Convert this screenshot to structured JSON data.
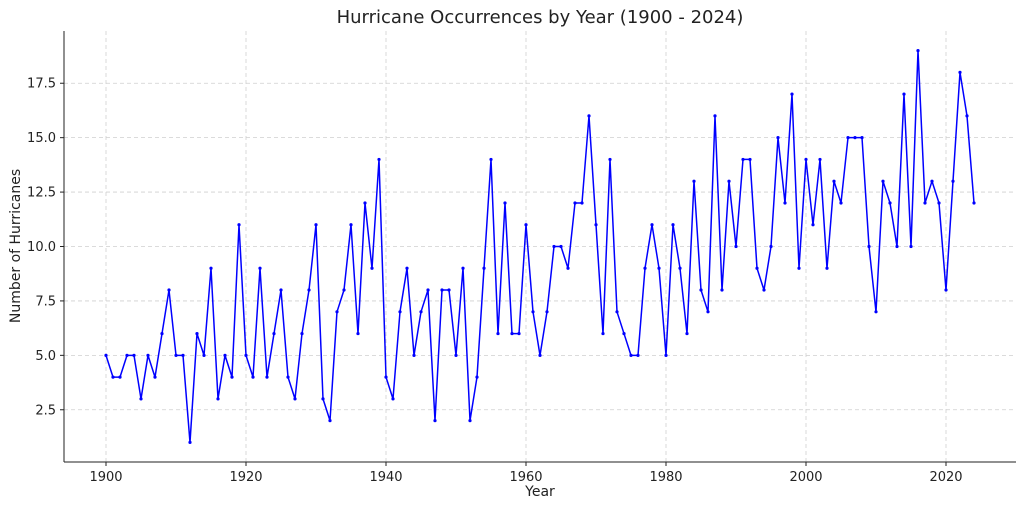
{
  "chart_data": {
    "type": "line",
    "title": "Hurricane Occurrences by Year (1900 - 2024)",
    "xlabel": "Year",
    "ylabel": "Number of Hurricanes",
    "xlim": [
      1894,
      2030
    ],
    "ylim": [
      0.1,
      19.9
    ],
    "xticks": [
      1900,
      1920,
      1940,
      1960,
      1980,
      2000,
      2020
    ],
    "yticks": [
      2.5,
      5.0,
      7.5,
      10.0,
      12.5,
      15.0,
      17.5
    ],
    "xtick_labels": [
      "1900",
      "1920",
      "1940",
      "1960",
      "1980",
      "2000",
      "2020"
    ],
    "ytick_labels": [
      "2.5",
      "5.0",
      "7.5",
      "10.0",
      "12.5",
      "15.0",
      "17.5"
    ],
    "grid": true,
    "line_color": "#0000ff",
    "series": [
      {
        "x": [
          1900,
          1901,
          1902,
          1903,
          1904,
          1905,
          1906,
          1907,
          1908,
          1909,
          1910,
          1911,
          1912,
          1913,
          1914,
          1915,
          1916,
          1917,
          1918,
          1919,
          1920,
          1921,
          1922,
          1923,
          1924,
          1925,
          1926,
          1927,
          1928,
          1929,
          1930,
          1931,
          1932,
          1933,
          1934,
          1935,
          1936,
          1937,
          1938,
          1939,
          1940,
          1941,
          1942,
          1943,
          1944,
          1945,
          1946,
          1947,
          1948,
          1949,
          1950,
          1951,
          1952,
          1953,
          1954,
          1955,
          1956,
          1957,
          1958,
          1959,
          1960,
          1961,
          1962,
          1963,
          1964,
          1965,
          1966,
          1967,
          1968,
          1969,
          1970,
          1971,
          1972,
          1973,
          1974,
          1975,
          1976,
          1977,
          1978,
          1979,
          1980,
          1981,
          1982,
          1983,
          1984,
          1985,
          1986,
          1987,
          1988,
          1989,
          1990,
          1991,
          1992,
          1993,
          1994,
          1995,
          1996,
          1997,
          1998,
          1999,
          2000,
          2001,
          2002,
          2003,
          2004,
          2005,
          2006,
          2007,
          2008,
          2009,
          2010,
          2011,
          2012,
          2013,
          2014,
          2015,
          2016,
          2017,
          2018,
          2019,
          2020,
          2021,
          2022,
          2023,
          2024
        ],
        "y": [
          5,
          4,
          4,
          5,
          5,
          3,
          5,
          4,
          6,
          8,
          5,
          5,
          1,
          6,
          5,
          9,
          3,
          5,
          4,
          11,
          5,
          4,
          9,
          4,
          6,
          8,
          4,
          3,
          6,
          8,
          11,
          3,
          2,
          7,
          8,
          11,
          6,
          12,
          9,
          14,
          4,
          3,
          7,
          9,
          5,
          7,
          8,
          2,
          8,
          8,
          5,
          9,
          2,
          4,
          9,
          14,
          6,
          12,
          6,
          6,
          11,
          7,
          5,
          7,
          10,
          10,
          9,
          12,
          12,
          16,
          11,
          6,
          14,
          7,
          6,
          5,
          5,
          9,
          11,
          9,
          5,
          11,
          9,
          6,
          13,
          8,
          7,
          16,
          8,
          13,
          10,
          14,
          14,
          9,
          8,
          10,
          15,
          12,
          17,
          9,
          14,
          11,
          14,
          9,
          13,
          12,
          15,
          15,
          15,
          10,
          7,
          13,
          12,
          10,
          17,
          10,
          19,
          12,
          13,
          12,
          8,
          13,
          18,
          16,
          12
        ]
      }
    ]
  }
}
